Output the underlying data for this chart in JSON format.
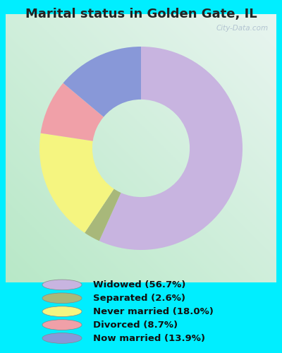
{
  "title": "Marital status in Golden Gate, IL",
  "slices": [
    {
      "label": "Widowed (56.7%)",
      "value": 56.7,
      "color": "#c8b4e0"
    },
    {
      "label": "Separated (2.6%)",
      "value": 2.6,
      "color": "#a8b87a"
    },
    {
      "label": "Never married (18.0%)",
      "value": 18.0,
      "color": "#f5f580"
    },
    {
      "label": "Divorced (8.7%)",
      "value": 8.7,
      "color": "#f0a0a8"
    },
    {
      "label": "Now married (13.9%)",
      "value": 13.9,
      "color": "#8898d8"
    }
  ],
  "legend_colors": [
    "#c8b4e0",
    "#a8b87a",
    "#f5f580",
    "#f0a0a8",
    "#8898d8"
  ],
  "legend_labels": [
    "Widowed (56.7%)",
    "Separated (2.6%)",
    "Never married (18.0%)",
    "Divorced (8.7%)",
    "Now married (13.9%)"
  ],
  "bg_outer": "#00eeff",
  "title_fontsize": 13,
  "title_color": "#222222",
  "watermark": "City-Data.com",
  "donut_width": 0.52
}
